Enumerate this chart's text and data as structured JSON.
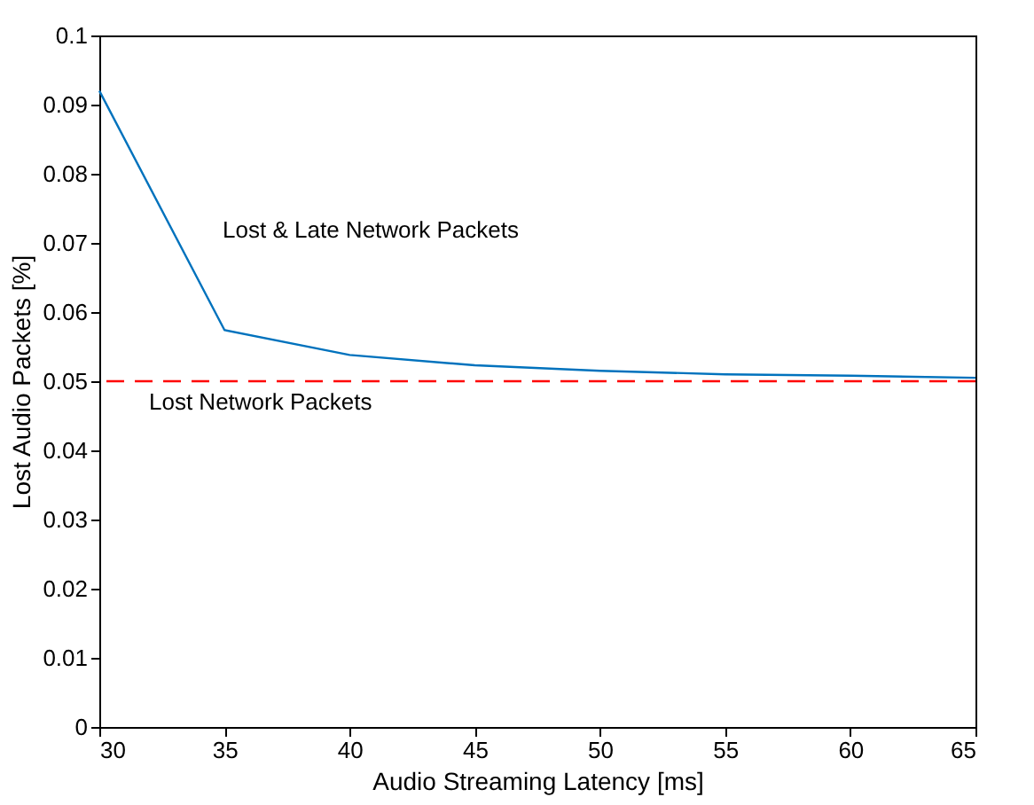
{
  "chart_data": {
    "type": "line",
    "xlabel": "Audio Streaming Latency [ms]",
    "ylabel": "Lost Audio Packets [%]",
    "x": [
      30,
      35,
      40,
      45,
      50,
      55,
      60,
      65
    ],
    "series": [
      {
        "color": "#0072bd",
        "values": [
          0.092,
          0.0574,
          0.0538,
          0.0523,
          0.0515,
          0.051,
          0.0508,
          0.0505
        ]
      }
    ],
    "xlim": [
      30,
      65
    ],
    "xticks": [
      30,
      35,
      40,
      45,
      50,
      55,
      60,
      65
    ],
    "ylim": [
      0,
      0.1
    ],
    "yticks": [
      0,
      0.01,
      0.02,
      0.03,
      0.04,
      0.05,
      0.06,
      0.07,
      0.08,
      0.09,
      0.1
    ],
    "grid": false,
    "line_style": "solid",
    "marker": "none",
    "ref_lines": [
      {
        "axis": "y",
        "value": 0.05,
        "label": "Lost Network Packets",
        "color": "#ff0000",
        "line_style": "dashed"
      }
    ],
    "annotations": [
      "Lost & Late Network Packets"
    ]
  }
}
